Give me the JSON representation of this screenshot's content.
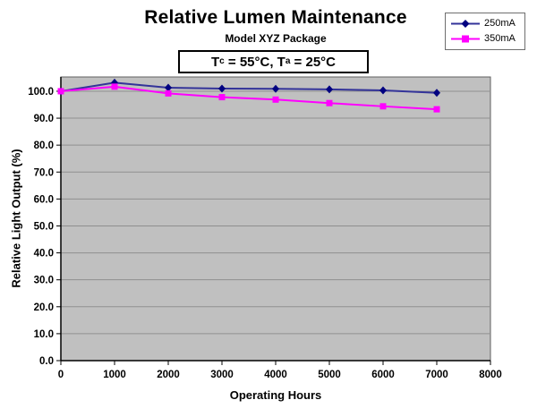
{
  "chart_data": {
    "type": "line",
    "title": "Relative Lumen Maintenance",
    "subtitle": "Model XYZ Package",
    "annotation": {
      "prefix": "T",
      "sub1": "c",
      "middle": " = 55°C, T",
      "sub2": "a",
      "suffix": " = 25°C"
    },
    "xlabel": "Operating Hours",
    "ylabel": "Relative Light Output (%)",
    "x": [
      0,
      1000,
      2000,
      3000,
      4000,
      5000,
      6000,
      7000
    ],
    "xlim": [
      0,
      8000
    ],
    "ylim": [
      0,
      105.3
    ],
    "x_ticks": [
      0,
      1000,
      2000,
      3000,
      4000,
      5000,
      6000,
      7000,
      8000
    ],
    "y_tick_labels": [
      "0.0",
      "10.0",
      "20.0",
      "30.0",
      "40.0",
      "50.0",
      "60.0",
      "70.0",
      "80.0",
      "90.0",
      "100.0"
    ],
    "grid": "horizontal-only",
    "legend_position": "top-right",
    "colors": {
      "plot_bg": "#c0c0c0",
      "gridline": "#8f8f8f",
      "plot_border": "#606060",
      "axis": "#000000"
    },
    "series": [
      {
        "name": "250mA",
        "marker": "diamond",
        "line_color": "#333399",
        "marker_color": "#000080",
        "values": [
          100.0,
          103.2,
          101.3,
          101.0,
          100.9,
          100.7,
          100.3,
          99.4
        ]
      },
      {
        "name": "350mA",
        "marker": "square",
        "line_color": "#ff00ff",
        "marker_color": "#ff00ff",
        "values": [
          100.0,
          101.7,
          99.2,
          97.8,
          96.9,
          95.6,
          94.4,
          93.3
        ]
      }
    ]
  }
}
